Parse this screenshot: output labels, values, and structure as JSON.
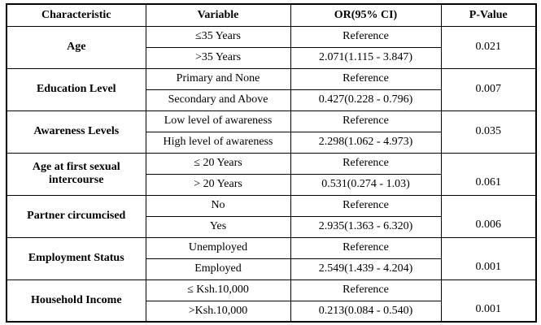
{
  "table": {
    "headers": {
      "characteristic": "Characteristic",
      "variable": "Variable",
      "or_ci": "OR(95% CI)",
      "p_value": "P-Value"
    },
    "groups": [
      {
        "characteristic": "Age",
        "rows": [
          {
            "variable": "≤35 Years",
            "or": "Reference"
          },
          {
            "variable": ">35 Years",
            "or": "2.071(1.115 - 3.847)"
          }
        ],
        "p_value": "0.021"
      },
      {
        "characteristic": "Education Level",
        "rows": [
          {
            "variable": "Primary and None",
            "or": "Reference"
          },
          {
            "variable": "Secondary and Above",
            "or": "0.427(0.228 - 0.796)"
          }
        ],
        "p_value": "0.007"
      },
      {
        "characteristic": "Awareness Levels",
        "rows": [
          {
            "variable": "Low level of awareness",
            "or": "Reference"
          },
          {
            "variable": "High level of awareness",
            "or": "2.298(1.062 - 4.973)"
          }
        ],
        "p_value": "0.035"
      },
      {
        "characteristic": "Age at first sexual intercourse",
        "rows": [
          {
            "variable": "≤ 20 Years",
            "or": "Reference"
          },
          {
            "variable": "> 20 Years",
            "or": "0.531(0.274 - 1.03)"
          }
        ],
        "p_value": "0.061"
      },
      {
        "characteristic": "Partner circumcised",
        "rows": [
          {
            "variable": "No",
            "or": "Reference"
          },
          {
            "variable": "Yes",
            "or": "2.935(1.363 - 6.320)"
          }
        ],
        "p_value": "0.006"
      },
      {
        "characteristic": "Employment Status",
        "rows": [
          {
            "variable": "Unemployed",
            "or": "Reference"
          },
          {
            "variable": "Employed",
            "or": "2.549(1.439 - 4.204)"
          }
        ],
        "p_value": "0.001"
      },
      {
        "characteristic": "Household Income",
        "rows": [
          {
            "variable": "≤ Ksh.10,000",
            "or": "Reference"
          },
          {
            "variable": ">Ksh.10,000",
            "or": "0.213(0.084 - 0.540)"
          }
        ],
        "p_value": "0.001"
      }
    ]
  },
  "colors": {
    "border": "#000000",
    "text": "#000000",
    "background": "#ffffff"
  }
}
